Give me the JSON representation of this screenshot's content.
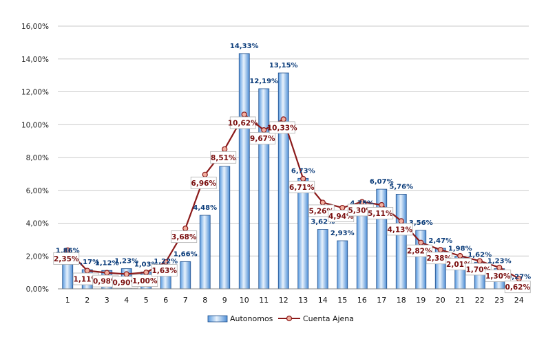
{
  "chart_data": {
    "type": "bar",
    "categories": [
      "1",
      "2",
      "3",
      "4",
      "5",
      "6",
      "7",
      "8",
      "9",
      "10",
      "11",
      "12",
      "13",
      "14",
      "15",
      "16",
      "17",
      "18",
      "19",
      "20",
      "21",
      "22",
      "23",
      "24"
    ],
    "ylim": [
      0,
      16
    ],
    "yticks": [
      "0,00%",
      "2,00%",
      "4,00%",
      "6,00%",
      "8,00%",
      "10,00%",
      "12,00%",
      "14,00%",
      "16,00%"
    ],
    "grid": true,
    "legend_position": "bottom",
    "series": [
      {
        "name": "Autonomos",
        "type": "bar",
        "color": "#9cc3ea",
        "values": [
          1.86,
          1.17,
          1.12,
          1.23,
          1.03,
          1.22,
          1.66,
          4.48,
          7.46,
          14.33,
          12.19,
          13.15,
          6.73,
          3.62,
          2.93,
          4.75,
          6.07,
          5.76,
          3.56,
          2.47,
          1.98,
          1.62,
          1.23,
          0.27
        ],
        "labels": [
          "1,86%",
          "1,17%",
          "1,12%",
          "1,23%",
          "1,03%",
          "1,22%",
          "1,66%",
          "4,48%",
          "7,46%",
          "14,33%",
          "12,19%",
          "13,15%",
          "6,73%",
          "3,62%",
          "2,93%",
          "4,75%",
          "6,07%",
          "5,76%",
          "3,56%",
          "2,47%",
          "1,98%",
          "1,62%",
          "1,23%",
          "0,27%"
        ]
      },
      {
        "name": "Cuenta Ajena",
        "type": "line",
        "color": "#8b1a1a",
        "values": [
          2.35,
          1.11,
          0.98,
          0.9,
          1.0,
          1.63,
          3.68,
          6.96,
          8.51,
          10.62,
          9.67,
          10.33,
          6.71,
          5.26,
          4.94,
          5.3,
          5.11,
          4.13,
          2.82,
          2.38,
          2.01,
          1.7,
          1.3,
          0.62
        ],
        "labels": [
          "2,35%",
          "1,11%",
          "0,98%",
          "0,90%",
          "1,00%",
          "1,63%",
          "3,68%",
          "6,96%",
          "8,51%",
          "10,62%",
          "9,67%",
          "10,33%",
          "6,71%",
          "5,26%",
          "4,94%",
          "5,30%",
          "5,11%",
          "4,13%",
          "2,82%",
          "2,38%",
          "2,01%",
          "1,70%",
          "1,30%",
          "0,62%"
        ]
      }
    ]
  }
}
